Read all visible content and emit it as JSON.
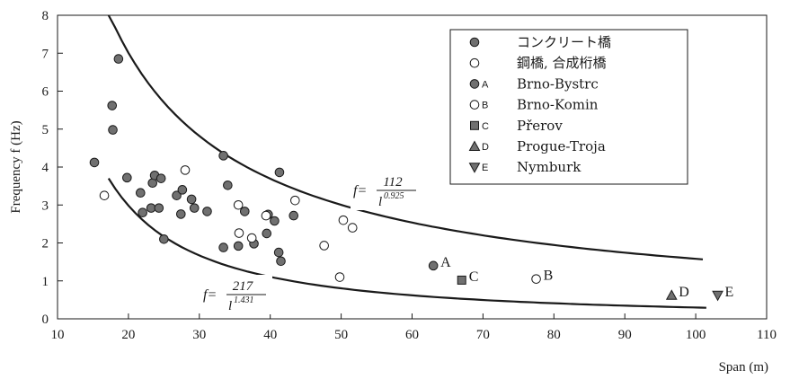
{
  "chart_data": {
    "type": "scatter",
    "xlabel": "Span (m)",
    "ylabel": "Frequency f (Hz)",
    "xlim": [
      10,
      110
    ],
    "ylim": [
      0,
      8
    ],
    "x_ticks": [
      10,
      20,
      30,
      40,
      50,
      60,
      70,
      80,
      90,
      100,
      110
    ],
    "y_ticks": [
      0,
      1,
      2,
      3,
      4,
      5,
      6,
      7,
      8
    ],
    "grid": false,
    "legend_position": "top-right",
    "series": [
      {
        "name": "コンクリート橋",
        "marker": "filled-circle",
        "color": "#707070",
        "points": [
          [
            15.2,
            4.12
          ],
          [
            17.7,
            5.62
          ],
          [
            17.8,
            4.98
          ],
          [
            18.6,
            6.85
          ],
          [
            19.8,
            3.72
          ],
          [
            21.7,
            3.32
          ],
          [
            22.0,
            2.8
          ],
          [
            23.2,
            2.92
          ],
          [
            23.4,
            3.58
          ],
          [
            23.7,
            3.78
          ],
          [
            24.3,
            2.92
          ],
          [
            24.6,
            3.7
          ],
          [
            25.0,
            2.1
          ],
          [
            26.8,
            3.25
          ],
          [
            27.4,
            2.76
          ],
          [
            27.6,
            3.4
          ],
          [
            28.9,
            3.15
          ],
          [
            29.3,
            2.92
          ],
          [
            31.1,
            2.83
          ],
          [
            33.4,
            1.88
          ],
          [
            33.4,
            4.3
          ],
          [
            34.0,
            3.52
          ],
          [
            35.5,
            1.92
          ],
          [
            36.4,
            2.83
          ],
          [
            37.7,
            1.98
          ],
          [
            39.5,
            2.25
          ],
          [
            39.7,
            2.75
          ],
          [
            40.6,
            2.58
          ],
          [
            41.2,
            1.75
          ],
          [
            41.3,
            3.86
          ],
          [
            41.5,
            1.52
          ],
          [
            43.3,
            2.72
          ]
        ]
      },
      {
        "name": "鋼橋, 合成桁橋",
        "marker": "open-circle",
        "color": "#ffffff",
        "points": [
          [
            16.6,
            3.25
          ],
          [
            28.0,
            3.92
          ],
          [
            35.5,
            3.0
          ],
          [
            35.6,
            2.26
          ],
          [
            37.4,
            2.13
          ],
          [
            39.4,
            2.72
          ],
          [
            43.5,
            3.12
          ],
          [
            47.6,
            1.93
          ],
          [
            49.8,
            1.1
          ],
          [
            50.3,
            2.6
          ],
          [
            51.6,
            2.4
          ]
        ]
      },
      {
        "name": "Brno-Bystrc",
        "label": "A",
        "marker": "filled-circle",
        "color": "#707070",
        "points": [
          [
            63.0,
            1.4
          ]
        ]
      },
      {
        "name": "Brno-Komin",
        "label": "B",
        "marker": "open-circle",
        "color": "#ffffff",
        "points": [
          [
            77.5,
            1.05
          ]
        ]
      },
      {
        "name": "Přerov",
        "label": "C",
        "marker": "filled-square",
        "color": "#707070",
        "points": [
          [
            67.0,
            1.02
          ]
        ]
      },
      {
        "name": "Progue-Troja",
        "label": "D",
        "marker": "filled-triangle-up",
        "color": "#707070",
        "points": [
          [
            96.6,
            0.62
          ]
        ]
      },
      {
        "name": "Nymburk",
        "label": "E",
        "marker": "filled-triangle-down",
        "color": "#707070",
        "points": [
          [
            103.1,
            0.62
          ]
        ]
      }
    ],
    "curves": [
      {
        "formula": "f = 112 / l^0.925",
        "coef": 112,
        "exp": 0.925,
        "x_range": [
          17.2,
          101
        ],
        "label_lhs": "f=",
        "label_num": "112",
        "label_den": "l",
        "label_exp": "0.925"
      },
      {
        "formula": "f = 217 / l^1.431",
        "coef": 217,
        "exp": 1.431,
        "x_range": [
          17.2,
          101.5
        ],
        "label_lhs": "f=",
        "label_num": "217",
        "label_den": "l",
        "label_exp": "1.431"
      }
    ],
    "legend": [
      {
        "symbol": "filled-circle",
        "tag": "",
        "text": "コンクリート橋"
      },
      {
        "symbol": "open-circle",
        "tag": "",
        "text": "鋼橋, 合成桁橋"
      },
      {
        "symbol": "filled-circle",
        "tag": "A",
        "text": "Brno-Bystrc"
      },
      {
        "symbol": "open-circle",
        "tag": "B",
        "text": "Brno-Komin"
      },
      {
        "symbol": "filled-square",
        "tag": "C",
        "text": "Přerov"
      },
      {
        "symbol": "filled-triangle-up",
        "tag": "D",
        "text": "Progue-Troja"
      },
      {
        "symbol": "filled-triangle-down",
        "tag": "E",
        "text": "Nymburk"
      }
    ]
  }
}
